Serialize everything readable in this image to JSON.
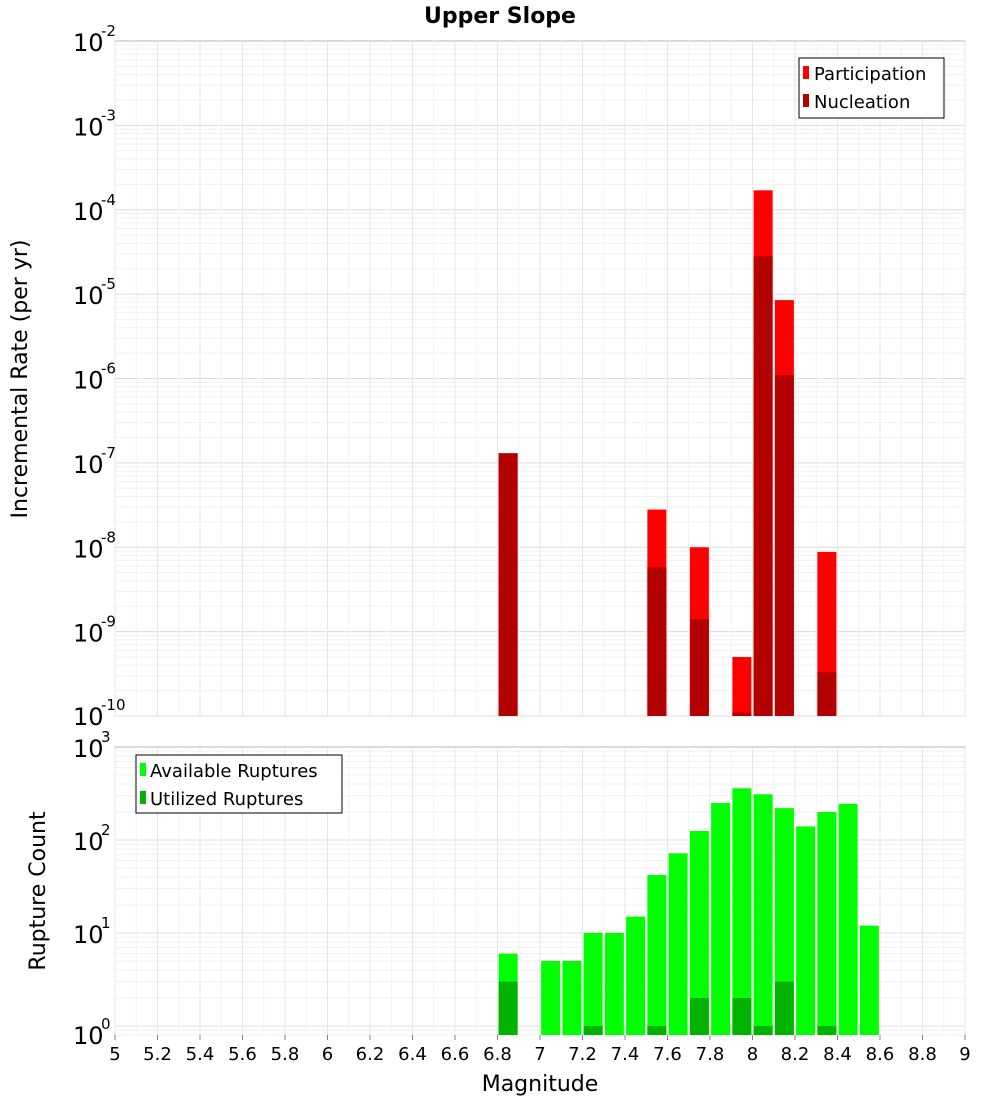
{
  "chart_data": [
    {
      "type": "bar",
      "title": "Upper Slope",
      "xlabel": "",
      "ylabel": "Incremental Rate (per yr)",
      "yscale": "log",
      "ylim": [
        1e-10,
        0.01
      ],
      "xlim": [
        5,
        9
      ],
      "x": [
        6.85,
        7.55,
        7.75,
        7.95,
        8.05,
        8.15,
        8.35
      ],
      "series": [
        {
          "name": "Participation",
          "color": "#ff0000",
          "values": [
            1.3e-07,
            2.8e-08,
            1e-08,
            5e-10,
            0.00017,
            8.5e-06,
            8.8e-09
          ]
        },
        {
          "name": "Nucleation",
          "color": "#b30000",
          "values": [
            1.3e-07,
            5.8e-09,
            1.4e-09,
            1.1e-10,
            2.8e-05,
            1.1e-06,
            3.3e-10
          ]
        }
      ],
      "yticks": [
        {
          "base": "10",
          "exp": "-2"
        },
        {
          "base": "10",
          "exp": "-3"
        },
        {
          "base": "10",
          "exp": "-4"
        },
        {
          "base": "10",
          "exp": "-5"
        },
        {
          "base": "10",
          "exp": "-6"
        },
        {
          "base": "10",
          "exp": "-7"
        },
        {
          "base": "10",
          "exp": "-8"
        },
        {
          "base": "10",
          "exp": "-9"
        },
        {
          "base": "10",
          "exp": "-10"
        }
      ],
      "legend_position": "top-right",
      "grid": true
    },
    {
      "type": "bar",
      "title": "",
      "xlabel": "Magnitude",
      "ylabel": "Rupture Count",
      "yscale": "log",
      "ylim": [
        0.8,
        1000
      ],
      "xlim": [
        5,
        9
      ],
      "x": [
        6.85,
        7.05,
        7.15,
        7.25,
        7.35,
        7.45,
        7.55,
        7.65,
        7.75,
        7.85,
        7.95,
        8.05,
        8.15,
        8.25,
        8.35,
        8.45,
        8.55
      ],
      "series": [
        {
          "name": "Available Ruptures",
          "color": "#00ff00",
          "values": [
            6,
            5,
            5,
            10,
            10,
            15,
            42,
            72,
            125,
            250,
            360,
            310,
            220,
            140,
            200,
            245,
            12
          ]
        },
        {
          "name": "Utilized Ruptures",
          "color": "#00b300",
          "values": [
            3,
            0,
            0,
            1,
            0,
            0,
            1,
            0,
            2,
            0,
            2,
            1,
            3,
            0,
            1,
            0,
            0
          ]
        }
      ],
      "yticks": [
        {
          "base": "10",
          "exp": "3"
        },
        {
          "base": "10",
          "exp": "2"
        },
        {
          "base": "10",
          "exp": "1"
        },
        {
          "base": "10",
          "exp": "0"
        }
      ],
      "xticks": [
        "5",
        "5.2",
        "5.4",
        "5.6",
        "5.8",
        "6",
        "6.2",
        "6.4",
        "6.6",
        "6.8",
        "7",
        "7.2",
        "7.4",
        "7.6",
        "7.8",
        "8",
        "8.2",
        "8.4",
        "8.6",
        "8.8",
        "9"
      ],
      "legend_position": "top-left",
      "grid": true
    }
  ]
}
